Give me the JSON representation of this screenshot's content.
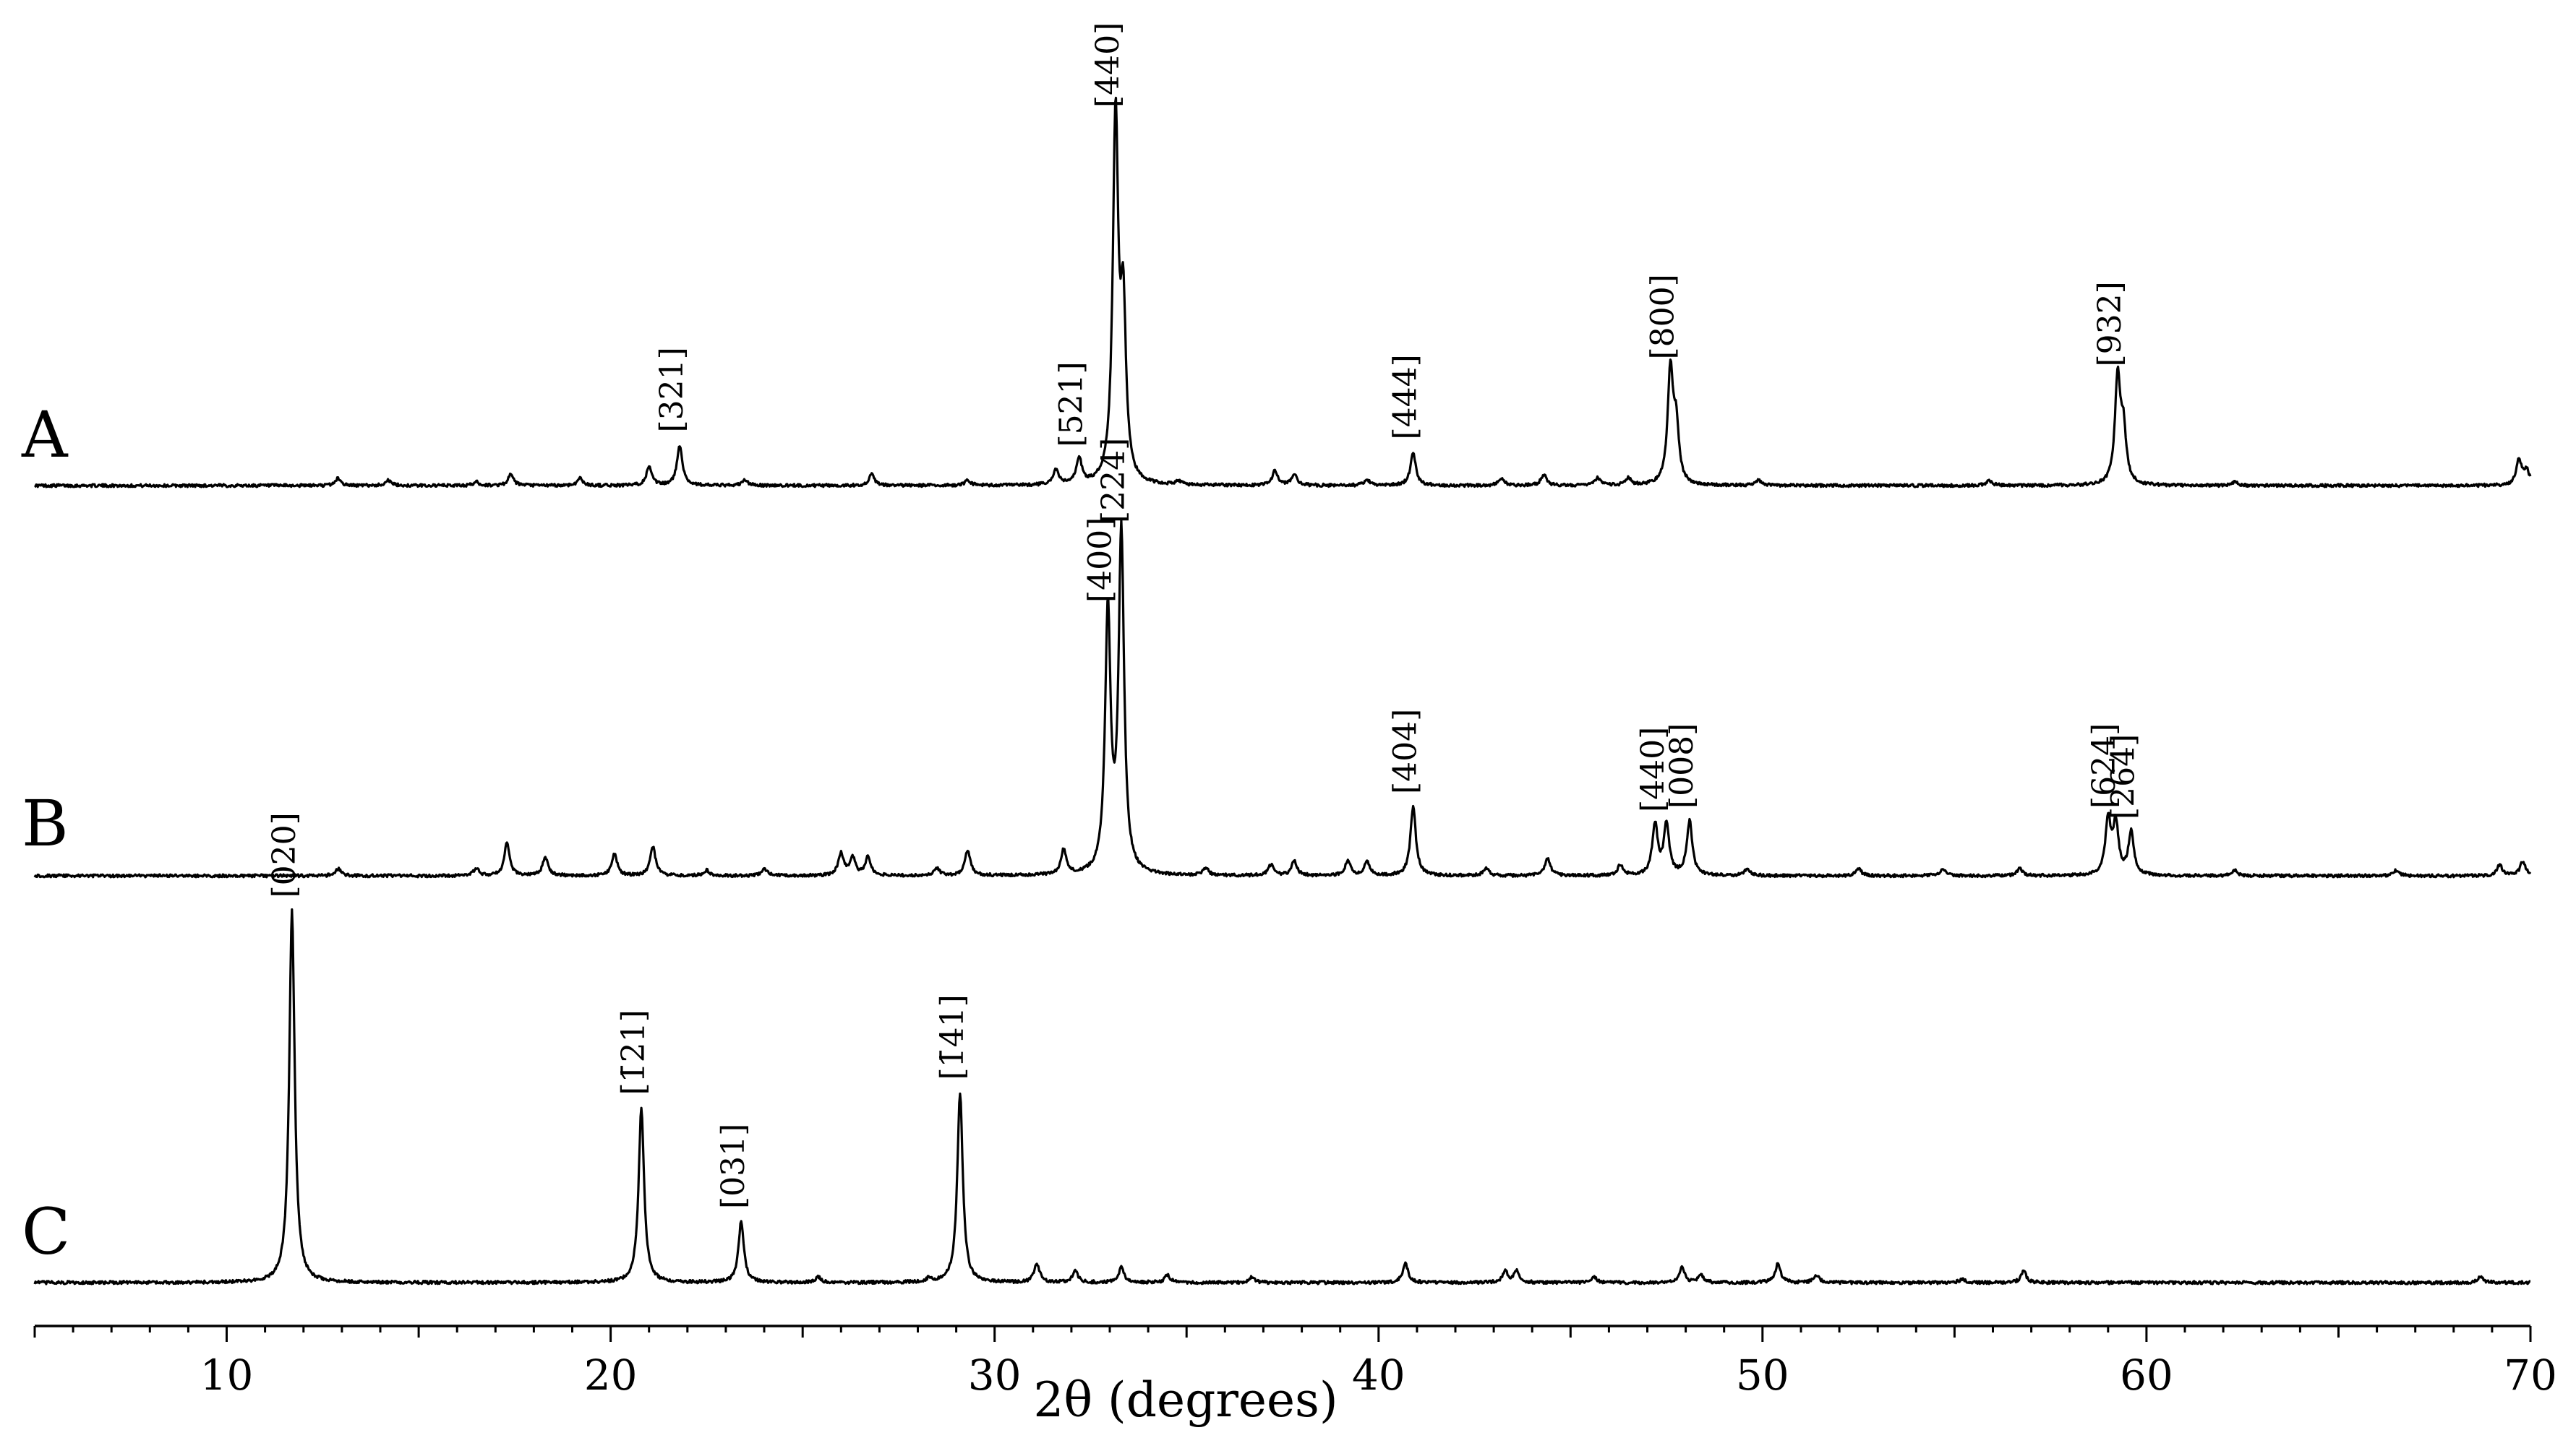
{
  "chart_data": {
    "type": "line",
    "title": "",
    "xlabel": "2θ (degrees)",
    "ylabel": "",
    "xlim": [
      5,
      70
    ],
    "xticks": [
      10,
      20,
      30,
      40,
      50,
      60,
      70
    ],
    "grid": false,
    "legend": "none",
    "series": [
      {
        "name": "A",
        "peaks": [
          {
            "x": 12.9,
            "h": 0.02
          },
          {
            "x": 14.2,
            "h": 0.015
          },
          {
            "x": 16.5,
            "h": 0.01
          },
          {
            "x": 17.4,
            "h": 0.03
          },
          {
            "x": 19.2,
            "h": 0.02
          },
          {
            "x": 21.0,
            "h": 0.05
          },
          {
            "x": 21.8,
            "h": 0.11
          },
          {
            "x": 23.5,
            "h": 0.015
          },
          {
            "x": 26.8,
            "h": 0.03
          },
          {
            "x": 29.3,
            "h": 0.015
          },
          {
            "x": 31.6,
            "h": 0.04
          },
          {
            "x": 32.2,
            "h": 0.07
          },
          {
            "x": 33.15,
            "h": 1.0
          },
          {
            "x": 33.35,
            "h": 0.45
          },
          {
            "x": 34.8,
            "h": 0.01
          },
          {
            "x": 37.3,
            "h": 0.04
          },
          {
            "x": 37.8,
            "h": 0.03
          },
          {
            "x": 39.7,
            "h": 0.015
          },
          {
            "x": 40.9,
            "h": 0.09
          },
          {
            "x": 43.2,
            "h": 0.02
          },
          {
            "x": 44.3,
            "h": 0.03
          },
          {
            "x": 45.7,
            "h": 0.02
          },
          {
            "x": 46.5,
            "h": 0.02
          },
          {
            "x": 47.6,
            "h": 0.31
          },
          {
            "x": 47.75,
            "h": 0.15
          },
          {
            "x": 49.9,
            "h": 0.015
          },
          {
            "x": 55.9,
            "h": 0.015
          },
          {
            "x": 59.25,
            "h": 0.29
          },
          {
            "x": 59.4,
            "h": 0.14
          },
          {
            "x": 62.3,
            "h": 0.01
          },
          {
            "x": 69.7,
            "h": 0.07
          },
          {
            "x": 69.9,
            "h": 0.04
          }
        ],
        "labels": [
          {
            "text": "[321]",
            "x": 21.8
          },
          {
            "text": "[521]",
            "x": 32.2
          },
          {
            "text": "[440]",
            "x": 33.15
          },
          {
            "text": "[444]",
            "x": 40.9
          },
          {
            "text": "[800]",
            "x": 47.6
          },
          {
            "text": "[932]",
            "x": 59.25
          }
        ]
      },
      {
        "name": "B",
        "peaks": [
          {
            "x": 12.9,
            "h": 0.02
          },
          {
            "x": 16.5,
            "h": 0.02
          },
          {
            "x": 17.3,
            "h": 0.09
          },
          {
            "x": 18.3,
            "h": 0.05
          },
          {
            "x": 20.1,
            "h": 0.06
          },
          {
            "x": 21.1,
            "h": 0.08
          },
          {
            "x": 22.5,
            "h": 0.015
          },
          {
            "x": 24.0,
            "h": 0.02
          },
          {
            "x": 26.0,
            "h": 0.06
          },
          {
            "x": 26.3,
            "h": 0.05
          },
          {
            "x": 26.7,
            "h": 0.05
          },
          {
            "x": 28.5,
            "h": 0.02
          },
          {
            "x": 29.3,
            "h": 0.07
          },
          {
            "x": 31.8,
            "h": 0.07
          },
          {
            "x": 32.95,
            "h": 0.72
          },
          {
            "x": 33.3,
            "h": 0.94
          },
          {
            "x": 35.5,
            "h": 0.02
          },
          {
            "x": 37.2,
            "h": 0.03
          },
          {
            "x": 37.8,
            "h": 0.04
          },
          {
            "x": 39.2,
            "h": 0.04
          },
          {
            "x": 39.7,
            "h": 0.04
          },
          {
            "x": 40.9,
            "h": 0.19
          },
          {
            "x": 42.8,
            "h": 0.02
          },
          {
            "x": 44.4,
            "h": 0.05
          },
          {
            "x": 46.3,
            "h": 0.03
          },
          {
            "x": 47.2,
            "h": 0.14
          },
          {
            "x": 47.5,
            "h": 0.14
          },
          {
            "x": 48.1,
            "h": 0.15
          },
          {
            "x": 49.6,
            "h": 0.02
          },
          {
            "x": 52.5,
            "h": 0.02
          },
          {
            "x": 54.7,
            "h": 0.02
          },
          {
            "x": 56.7,
            "h": 0.02
          },
          {
            "x": 59.0,
            "h": 0.15
          },
          {
            "x": 59.2,
            "h": 0.14
          },
          {
            "x": 59.6,
            "h": 0.12
          },
          {
            "x": 62.3,
            "h": 0.015
          },
          {
            "x": 66.5,
            "h": 0.015
          },
          {
            "x": 69.2,
            "h": 0.03
          },
          {
            "x": 69.8,
            "h": 0.04
          }
        ],
        "labels": [
          {
            "text": "[400]",
            "x": 32.95
          },
          {
            "text": "[224]",
            "x": 33.3
          },
          {
            "text": "[404]",
            "x": 40.9
          },
          {
            "text": "[440]",
            "x": 47.35
          },
          {
            "text": "[008]",
            "x": 48.1
          },
          {
            "text": "[624]",
            "x": 59.1
          },
          {
            "text": "[264]",
            "x": 59.6
          }
        ]
      },
      {
        "name": "C",
        "peaks": [
          {
            "x": 11.7,
            "h": 0.98
          },
          {
            "x": 20.8,
            "h": 0.46
          },
          {
            "x": 23.4,
            "h": 0.16
          },
          {
            "x": 25.4,
            "h": 0.015
          },
          {
            "x": 28.3,
            "h": 0.01
          },
          {
            "x": 29.1,
            "h": 0.5
          },
          {
            "x": 31.1,
            "h": 0.05
          },
          {
            "x": 32.1,
            "h": 0.03
          },
          {
            "x": 33.3,
            "h": 0.04
          },
          {
            "x": 34.5,
            "h": 0.02
          },
          {
            "x": 36.7,
            "h": 0.015
          },
          {
            "x": 40.7,
            "h": 0.05
          },
          {
            "x": 43.3,
            "h": 0.03
          },
          {
            "x": 43.6,
            "h": 0.03
          },
          {
            "x": 45.6,
            "h": 0.015
          },
          {
            "x": 47.9,
            "h": 0.04
          },
          {
            "x": 48.4,
            "h": 0.02
          },
          {
            "x": 50.4,
            "h": 0.05
          },
          {
            "x": 51.4,
            "h": 0.02
          },
          {
            "x": 55.2,
            "h": 0.01
          },
          {
            "x": 56.8,
            "h": 0.03
          },
          {
            "x": 68.7,
            "h": 0.015
          }
        ],
        "labels": [
          {
            "text": "[020]",
            "x": 11.7
          },
          {
            "text": "[1̄21]",
            "x": 20.8
          },
          {
            "text": "[031]",
            "x": 23.4
          },
          {
            "text": "[1̄41]",
            "x": 29.1
          }
        ]
      }
    ]
  }
}
